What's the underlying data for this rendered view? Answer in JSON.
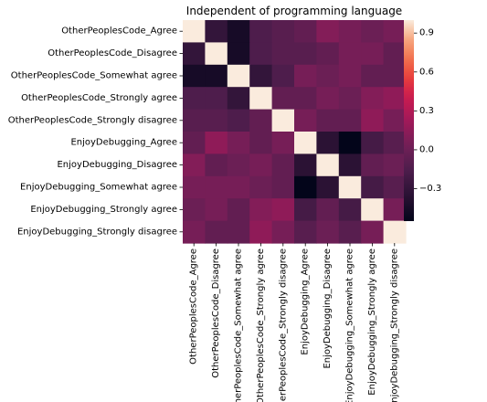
{
  "chart_data": {
    "type": "heatmap",
    "title": "Independent of programming language",
    "xlabel": "",
    "ylabel": "",
    "row_labels": [
      "OtherPeoplesCode_Agree",
      "OtherPeoplesCode_Disagree",
      "OtherPeoplesCode_Somewhat agree",
      "OtherPeoplesCode_Strongly agree",
      "OtherPeoplesCode_Strongly disagree",
      "EnjoyDebugging_Agree",
      "EnjoyDebugging_Disagree",
      "EnjoyDebugging_Somewhat agree",
      "EnjoyDebugging_Strongly agree",
      "EnjoyDebugging_Strongly disagree"
    ],
    "col_labels": [
      "OtherPeoplesCode_Agree",
      "OtherPeoplesCode_Disagree",
      "OtherPeoplesCode_Somewhat agree",
      "OtherPeoplesCode_Strongly agree",
      "OtherPeoplesCode_Strongly disagree",
      "EnjoyDebugging_Agree",
      "EnjoyDebugging_Disagree",
      "EnjoyDebugging_Somewhat agree",
      "EnjoyDebugging_Strongly agree",
      "EnjoyDebugging_Strongly disagree"
    ],
    "values": [
      [
        1.0,
        -0.3,
        -0.45,
        -0.15,
        -0.1,
        -0.05,
        0.1,
        0.05,
        0.0,
        0.05
      ],
      [
        -0.3,
        1.0,
        -0.45,
        -0.15,
        -0.1,
        -0.1,
        -0.05,
        0.05,
        0.05,
        -0.05
      ],
      [
        -0.45,
        -0.45,
        1.0,
        -0.3,
        -0.15,
        0.05,
        0.0,
        0.05,
        -0.05,
        -0.05
      ],
      [
        -0.15,
        -0.15,
        -0.3,
        1.0,
        -0.05,
        -0.05,
        0.05,
        0.0,
        0.1,
        0.15
      ],
      [
        -0.1,
        -0.1,
        -0.15,
        -0.05,
        1.0,
        0.05,
        -0.05,
        -0.05,
        0.15,
        0.05
      ],
      [
        -0.05,
        0.15,
        0.05,
        -0.05,
        0.05,
        1.0,
        -0.35,
        -0.55,
        -0.2,
        -0.1
      ],
      [
        0.1,
        -0.05,
        0.0,
        0.05,
        -0.05,
        -0.35,
        1.0,
        -0.35,
        -0.05,
        0.0
      ],
      [
        0.05,
        0.05,
        0.05,
        0.0,
        -0.05,
        -0.55,
        -0.35,
        1.0,
        -0.2,
        -0.1
      ],
      [
        0.0,
        0.05,
        -0.05,
        0.1,
        0.15,
        -0.2,
        -0.05,
        -0.2,
        1.0,
        0.05
      ],
      [
        0.05,
        -0.05,
        -0.05,
        0.15,
        0.05,
        -0.1,
        0.0,
        -0.1,
        0.05,
        1.0
      ]
    ],
    "vmin": -0.55,
    "vmax": 1.0,
    "colorbar_ticks": [
      -0.3,
      0.0,
      0.3,
      0.6,
      0.9
    ],
    "colormap": "rocket",
    "grid": false
  }
}
